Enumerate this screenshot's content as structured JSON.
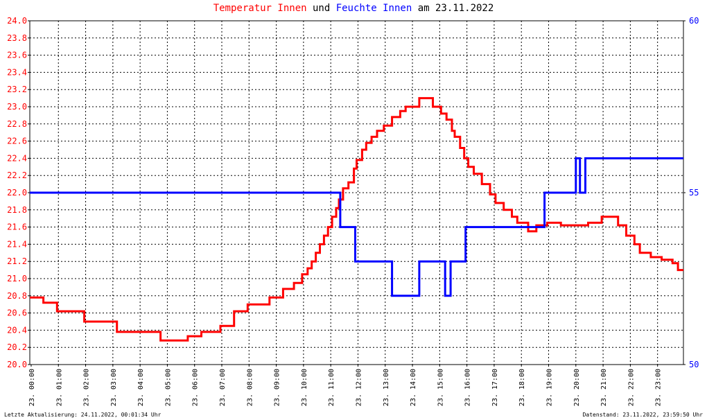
{
  "title": {
    "part1": "Temperatur Innen",
    "part2": " und ",
    "part3": "Feuchte Innen",
    "part4": " am 23.11.2022"
  },
  "colors": {
    "temperature": "#ff0000",
    "humidity": "#0000ff",
    "title_mid": "#000000"
  },
  "footer": {
    "left": "Letzte Aktualisierung: 24.11.2022, 00:01:34 Uhr",
    "right": "Datenstand: 23.11.2022, 23:59:50 Uhr"
  },
  "chart_data": {
    "type": "line",
    "grid": true,
    "x_ticks": [
      "23. 00:00",
      "23. 01:00",
      "23. 02:00",
      "23. 03:00",
      "23. 04:00",
      "23. 05:00",
      "23. 06:00",
      "23. 07:00",
      "23. 08:00",
      "23. 09:00",
      "23. 10:00",
      "23. 11:00",
      "23. 12:00",
      "23. 13:00",
      "23. 14:00",
      "23. 15:00",
      "23. 16:00",
      "23. 17:00",
      "23. 18:00",
      "23. 19:00",
      "23. 20:00",
      "23. 21:00",
      "23. 22:00",
      "23. 23:00"
    ],
    "xlim": [
      0,
      24
    ],
    "y_left": {
      "lim": [
        20.0,
        24.0
      ],
      "ticks": [
        "20.0",
        "20.2",
        "20.4",
        "20.6",
        "20.8",
        "21.0",
        "21.2",
        "21.4",
        "21.6",
        "21.8",
        "22.0",
        "22.2",
        "22.4",
        "22.6",
        "22.8",
        "23.0",
        "23.2",
        "23.4",
        "23.6",
        "23.8",
        "24.0"
      ]
    },
    "y_right": {
      "lim": [
        50,
        60
      ],
      "ticks": [
        "50",
        "55",
        "60"
      ]
    },
    "series": [
      {
        "name": "Temperatur Innen",
        "axis": "left",
        "step": true,
        "points": [
          [
            0,
            20.78
          ],
          [
            0.5,
            20.72
          ],
          [
            1.0,
            20.62
          ],
          [
            2.0,
            20.5
          ],
          [
            3.2,
            20.38
          ],
          [
            4.8,
            20.28
          ],
          [
            5.8,
            20.33
          ],
          [
            6.3,
            20.38
          ],
          [
            7.0,
            20.45
          ],
          [
            7.5,
            20.62
          ],
          [
            8.0,
            20.7
          ],
          [
            8.8,
            20.78
          ],
          [
            9.3,
            20.88
          ],
          [
            9.7,
            20.95
          ],
          [
            10.0,
            21.05
          ],
          [
            10.2,
            21.12
          ],
          [
            10.35,
            21.2
          ],
          [
            10.5,
            21.3
          ],
          [
            10.65,
            21.4
          ],
          [
            10.8,
            21.5
          ],
          [
            10.95,
            21.6
          ],
          [
            11.1,
            21.72
          ],
          [
            11.25,
            21.82
          ],
          [
            11.35,
            21.92
          ],
          [
            11.5,
            22.05
          ],
          [
            11.7,
            22.12
          ],
          [
            11.9,
            22.28
          ],
          [
            12.0,
            22.38
          ],
          [
            12.2,
            22.5
          ],
          [
            12.35,
            22.58
          ],
          [
            12.55,
            22.65
          ],
          [
            12.75,
            22.72
          ],
          [
            13.0,
            22.78
          ],
          [
            13.3,
            22.88
          ],
          [
            13.6,
            22.95
          ],
          [
            13.8,
            23.0
          ],
          [
            14.3,
            23.1
          ],
          [
            14.8,
            23.0
          ],
          [
            15.1,
            22.92
          ],
          [
            15.3,
            22.85
          ],
          [
            15.5,
            22.72
          ],
          [
            15.6,
            22.65
          ],
          [
            15.8,
            22.52
          ],
          [
            15.95,
            22.4
          ],
          [
            16.1,
            22.3
          ],
          [
            16.3,
            22.22
          ],
          [
            16.6,
            22.1
          ],
          [
            16.9,
            21.98
          ],
          [
            17.1,
            21.88
          ],
          [
            17.4,
            21.8
          ],
          [
            17.7,
            21.72
          ],
          [
            17.9,
            21.65
          ],
          [
            18.3,
            21.55
          ],
          [
            18.6,
            21.62
          ],
          [
            19.0,
            21.65
          ],
          [
            19.5,
            21.62
          ],
          [
            20.5,
            21.65
          ],
          [
            21.0,
            21.72
          ],
          [
            21.6,
            21.62
          ],
          [
            21.9,
            21.5
          ],
          [
            22.2,
            21.4
          ],
          [
            22.4,
            21.3
          ],
          [
            22.8,
            21.25
          ],
          [
            23.2,
            21.22
          ],
          [
            23.6,
            21.18
          ],
          [
            23.8,
            21.1
          ],
          [
            24.0,
            21.1
          ]
        ]
      },
      {
        "name": "Feuchte Innen",
        "axis": "right",
        "step": true,
        "points": [
          [
            0,
            55
          ],
          [
            11.35,
            55
          ],
          [
            11.4,
            54
          ],
          [
            11.9,
            54
          ],
          [
            11.95,
            53
          ],
          [
            13.25,
            53
          ],
          [
            13.3,
            52
          ],
          [
            14.25,
            52
          ],
          [
            14.3,
            53
          ],
          [
            15.2,
            53
          ],
          [
            15.25,
            52
          ],
          [
            15.4,
            52
          ],
          [
            15.45,
            53
          ],
          [
            15.95,
            53
          ],
          [
            16.0,
            54
          ],
          [
            18.85,
            54
          ],
          [
            18.9,
            55
          ],
          [
            20.0,
            55
          ],
          [
            20.05,
            56
          ],
          [
            20.15,
            56
          ],
          [
            20.2,
            55
          ],
          [
            20.35,
            55
          ],
          [
            20.4,
            56
          ],
          [
            24.0,
            56
          ]
        ]
      }
    ]
  }
}
